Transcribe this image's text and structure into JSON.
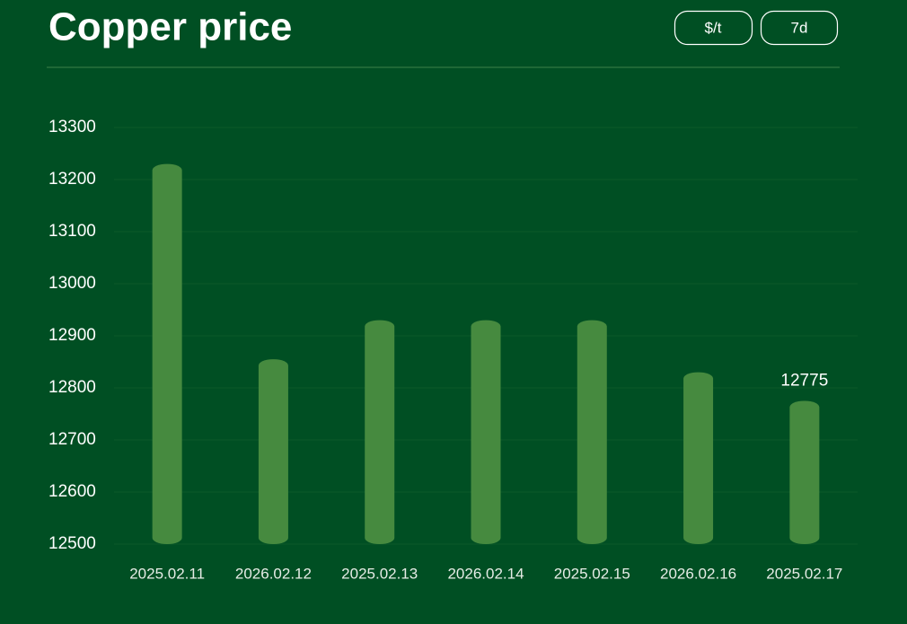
{
  "chart_data": {
    "type": "bar",
    "title": "Copper price",
    "buttons": [
      "$/t",
      "7d"
    ],
    "categories": [
      "2025.02.11",
      "2026.02.12",
      "2025.02.13",
      "2026.02.14",
      "2025.02.15",
      "2026.02.16",
      "2025.02.17"
    ],
    "values": [
      13230,
      12855,
      12930,
      12930,
      12930,
      12830,
      12775
    ],
    "value_labels": [
      null,
      null,
      null,
      null,
      null,
      null,
      "12775"
    ],
    "color": "#468a3f",
    "ylim": [
      12500,
      13300
    ],
    "yticks": [
      12500,
      12600,
      12700,
      12800,
      12900,
      13000,
      13100,
      13200,
      13300
    ],
    "grid": true
  }
}
